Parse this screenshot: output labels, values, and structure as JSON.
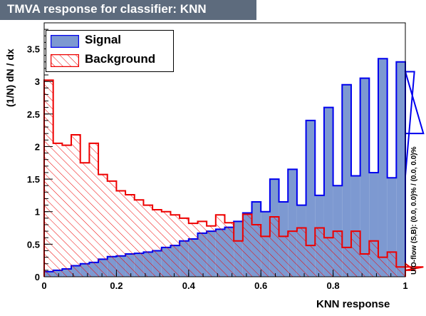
{
  "title": "TMVA response for classifier: KNN",
  "chart_data": {
    "type": "histogram",
    "title": "TMVA response for classifier: KNN",
    "xlabel": "KNN response",
    "ylabel": "(1/N)  dN / dx",
    "side_label": "U/O-flow (S,B): (0.0, 0.0)% / (0.0, 0.0)%",
    "xlim": [
      0,
      1
    ],
    "ylim": [
      0,
      3.9
    ],
    "x_ticks": [
      0,
      0.2,
      0.4,
      0.6,
      0.8,
      1
    ],
    "x_tick_labels": [
      "0",
      "0.2",
      "0.4",
      "0.6",
      "0.8",
      "1"
    ],
    "y_ticks": [
      0,
      0.5,
      1,
      1.5,
      2,
      2.5,
      3,
      3.5
    ],
    "y_tick_labels": [
      "0",
      "0.5",
      "1",
      "1.5",
      "2",
      "2.5",
      "3",
      "3.5"
    ],
    "bin_edges_start": 0,
    "bin_width": 0.025,
    "legend_position": "top-left",
    "series": [
      {
        "name": "Signal",
        "fill": "#7d99d1",
        "line": "#0000ee",
        "values": [
          0.08,
          0.1,
          0.12,
          0.17,
          0.2,
          0.22,
          0.27,
          0.31,
          0.32,
          0.35,
          0.36,
          0.38,
          0.4,
          0.45,
          0.48,
          0.55,
          0.58,
          0.67,
          0.7,
          0.73,
          0.76,
          0.85,
          0.98,
          1.15,
          1.0,
          1.5,
          1.15,
          1.65,
          1.1,
          2.4,
          1.25,
          2.6,
          1.4,
          2.95,
          1.55,
          3.05,
          1.6,
          3.35,
          1.52,
          3.3,
          1.55,
          3.15,
          2.2
        ]
      },
      {
        "name": "Background",
        "fill": "#ee0000",
        "line": "#ee0000",
        "values": [
          3.02,
          2.05,
          2.02,
          2.18,
          1.75,
          2.05,
          1.57,
          1.47,
          1.32,
          1.26,
          1.18,
          1.1,
          1.03,
          1.0,
          0.95,
          0.9,
          0.82,
          0.85,
          0.78,
          0.95,
          0.83,
          0.55,
          0.96,
          0.8,
          0.62,
          0.92,
          0.62,
          0.7,
          0.75,
          0.48,
          0.75,
          0.6,
          0.7,
          0.45,
          0.7,
          0.35,
          0.55,
          0.3,
          0.38,
          0.15,
          0.2,
          0.1,
          0.15
        ]
      }
    ]
  }
}
